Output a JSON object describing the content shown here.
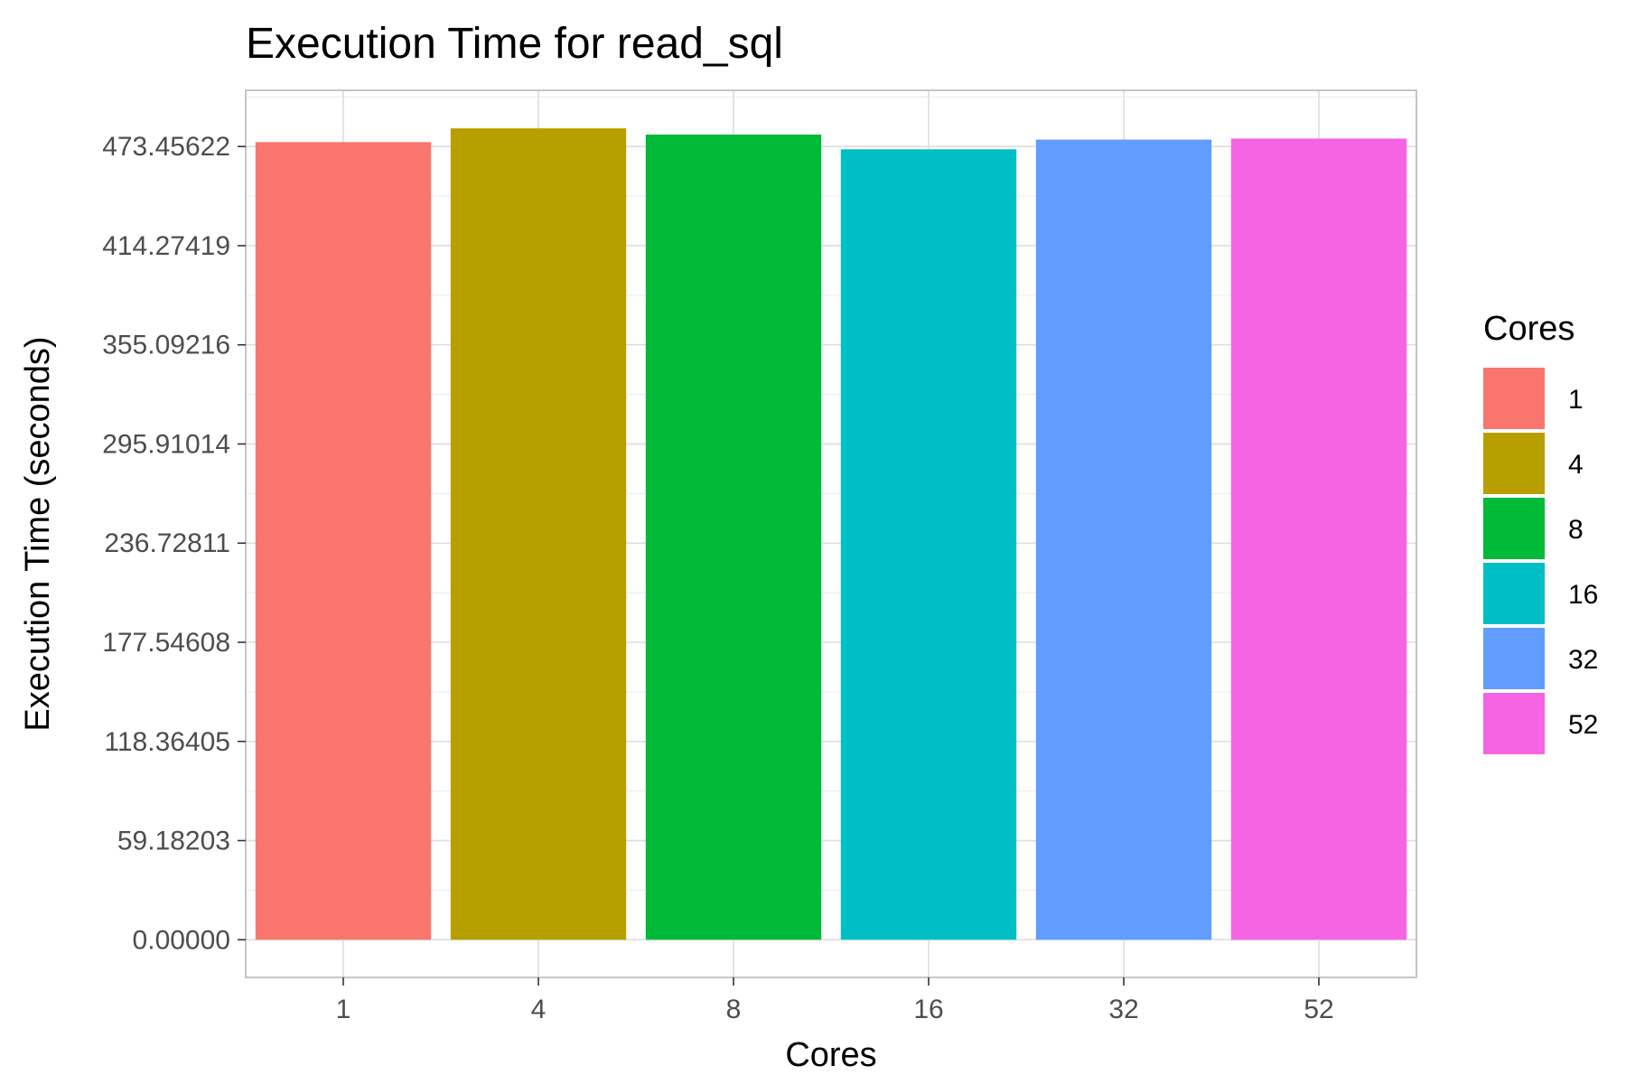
{
  "chart_data": {
    "type": "bar",
    "title": "Execution Time for read_sql",
    "xlabel": "Cores",
    "ylabel": "Execution Time (seconds)",
    "categories": [
      "1",
      "4",
      "8",
      "16",
      "32",
      "52"
    ],
    "values": [
      476.1,
      484.3,
      480.6,
      471.8,
      477.6,
      478.2
    ],
    "colors": [
      "#F8766D",
      "#B79F00",
      "#00BA38",
      "#00BFC4",
      "#619CFF",
      "#F564E3"
    ],
    "yticks": [
      "0.00000",
      "59.18203",
      "118.36405",
      "177.54608",
      "236.72811",
      "295.91014",
      "355.09216",
      "414.27419",
      "473.45622"
    ],
    "ytick_values": [
      0,
      59.18203,
      118.36405,
      177.54608,
      236.72811,
      295.91014,
      355.09216,
      414.27419,
      473.45622
    ],
    "ylim": [
      -22.5,
      507.0
    ],
    "grid": true,
    "legend": {
      "title": "Cores",
      "position": "right",
      "items": [
        "1",
        "4",
        "8",
        "16",
        "32",
        "52"
      ]
    }
  }
}
